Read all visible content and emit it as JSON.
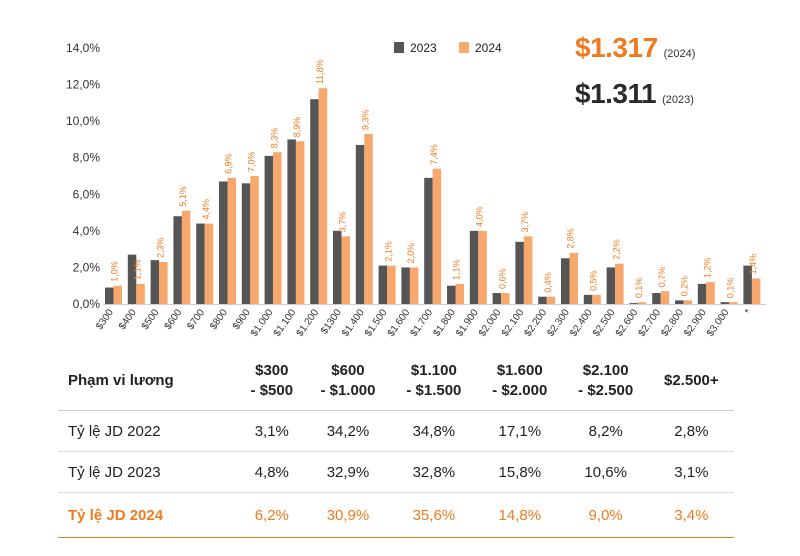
{
  "chart_data": {
    "type": "bar",
    "categories": [
      "$300",
      "$400",
      "$500",
      "$600",
      "$700",
      "$800",
      "$900",
      "$1.000",
      "$1.100",
      "$1.200",
      "$1300",
      "$1.400",
      "$1.500",
      "$1.600",
      "$1.700",
      "$1.800",
      "$1.900",
      "$2.000",
      "$2.100",
      "$2.200",
      "$2.300",
      "$2.400",
      "$2.500",
      "$2.600",
      "$2.700",
      "$2.800",
      "$2.900",
      "$3.000"
    ],
    "series": [
      {
        "name": "2023",
        "color": "#555555",
        "values": [
          0.9,
          2.7,
          2.4,
          4.8,
          4.4,
          6.7,
          6.6,
          8.1,
          9.0,
          11.2,
          4.0,
          8.7,
          2.1,
          2.0,
          6.9,
          1.0,
          4.0,
          0.6,
          3.4,
          0.4,
          2.5,
          0.5,
          2.0,
          0.05,
          0.6,
          0.2,
          1.1,
          0.1
        ]
      },
      {
        "name": "2024",
        "color": "#f8a86c",
        "values": [
          1.0,
          1.1,
          2.3,
          5.1,
          4.4,
          6.9,
          7.0,
          8.3,
          8.9,
          11.8,
          3.7,
          9.3,
          2.1,
          2.0,
          7.4,
          1.1,
          4.0,
          0.6,
          3.7,
          0.4,
          2.8,
          0.5,
          2.2,
          0.1,
          0.7,
          0.2,
          1.2,
          0.1
        ]
      }
    ],
    "extra_bars": [
      {
        "category": "*",
        "series": "2023",
        "value": 2.1
      },
      {
        "category": "*",
        "series": "2024",
        "value": 1.4
      }
    ],
    "data_labels_2024": [
      "1,0%",
      "1,1%",
      "2,3%",
      "5,1%",
      "4,4%",
      "6,9%",
      "7,0%",
      "8,3%",
      "8,9%",
      "11,8%",
      "3,7%",
      "9,3%",
      "2,1%",
      "2,0%",
      "7,4%",
      "1,1%",
      "4,0%",
      "0,6%",
      "3,7%",
      "0,4%",
      "2,8%",
      "0,5%",
      "2,2%",
      "0,1%",
      "0,7%",
      "0,2%",
      "1,2%",
      "0,1%",
      "1,4%"
    ],
    "extra_category_label": "*",
    "y_ticks": [
      "0,0%",
      "2,0%",
      "4,0%",
      "6,0%",
      "8,0%",
      "10,0%",
      "12,0%",
      "14,0%"
    ],
    "ylim": [
      0,
      14
    ],
    "legend": [
      "2023",
      "2024"
    ],
    "legend_position": "top-center",
    "title": "",
    "xlabel": "",
    "ylabel": ""
  },
  "summary": {
    "avg_2024": "$1.317",
    "avg_2024_label": "(2024)",
    "avg_2023": "$1.311",
    "avg_2023_label": "(2023)"
  },
  "table": {
    "headers": [
      "Phạm vi lương",
      "$300\n- $500",
      "$600\n- $1.000",
      "$1.100\n- $1.500",
      "$1.600\n- $2.000",
      "$2.100\n- $2.500",
      "$2.500+"
    ],
    "rows": [
      {
        "label": "Tỷ lệ JD 2022",
        "values": [
          "3,1%",
          "34,2%",
          "34,8%",
          "17,1%",
          "8,2%",
          "2,8%"
        ]
      },
      {
        "label": "Tỷ lệ JD 2023",
        "values": [
          "4,8%",
          "32,9%",
          "32,8%",
          "15,8%",
          "10,6%",
          "3,1%"
        ]
      },
      {
        "label": "Tỷ lệ JD 2024",
        "values": [
          "6,2%",
          "30,9%",
          "35,6%",
          "14,8%",
          "9,0%",
          "3,4%"
        ]
      }
    ]
  }
}
